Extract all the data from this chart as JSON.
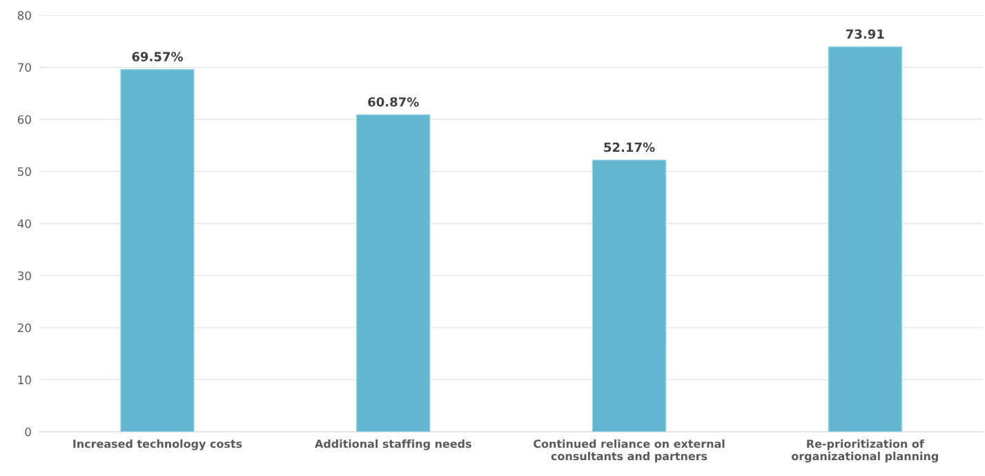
{
  "chart_data": {
    "type": "bar",
    "categories": [
      "Increased technology costs",
      "Additional staffing needs",
      "Continued reliance on external consultants and partners",
      "Re-prioritization of organizational planning"
    ],
    "values": [
      69.57,
      60.87,
      52.17,
      73.91
    ],
    "value_labels": [
      "69.57%",
      "60.87%",
      "52.17%",
      "73.91"
    ],
    "color": "#62b6d0",
    "ylim": [
      0,
      80
    ],
    "yticks": [
      0,
      10,
      20,
      30,
      40,
      50,
      60,
      70,
      80
    ],
    "grid": "y",
    "legend": false
  }
}
